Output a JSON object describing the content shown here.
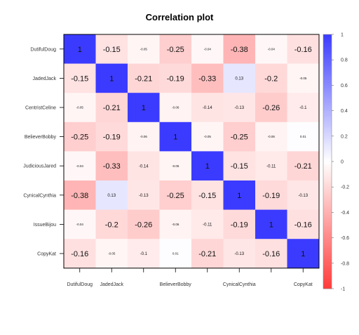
{
  "chart_data": {
    "type": "heatmap",
    "title": "Correlation plot",
    "variables": [
      "DutifulDoug",
      "JadedJack",
      "CentristCeline",
      "BelieverBobby",
      "JudiciousJared",
      "CynicalCynthia",
      "IssueBijou",
      "CopyKat"
    ],
    "x_tick_labels": [
      "DutifulDoug",
      "JadedJack",
      "",
      "BelieverBobby",
      "",
      "CynicalCynthia",
      "",
      "CopyKat"
    ],
    "matrix": [
      [
        1,
        -0.15,
        -0.05,
        -0.25,
        -0.04,
        -0.38,
        -0.04,
        -0.16
      ],
      [
        -0.15,
        1,
        -0.21,
        -0.19,
        -0.33,
        0.13,
        -0.2,
        -0.05
      ],
      [
        -0.05,
        -0.21,
        1,
        -0.06,
        -0.14,
        -0.13,
        -0.26,
        -0.1
      ],
      [
        -0.25,
        -0.19,
        -0.06,
        1,
        -0.05,
        -0.25,
        -0.06,
        0.01
      ],
      [
        -0.04,
        -0.33,
        -0.14,
        -0.05,
        1,
        -0.15,
        -0.11,
        -0.21
      ],
      [
        -0.38,
        0.13,
        -0.13,
        -0.25,
        -0.15,
        1,
        -0.19,
        -0.13
      ],
      [
        -0.04,
        -0.2,
        -0.26,
        -0.06,
        -0.11,
        -0.19,
        1,
        -0.16
      ],
      [
        -0.16,
        -0.05,
        -0.1,
        0.01,
        -0.21,
        -0.13,
        -0.16,
        1
      ]
    ],
    "cell_labels": [
      [
        "1",
        "-0.15",
        "-0.05",
        "-0.25",
        "-0.04",
        "-0.38",
        "-0.04",
        "-0.16"
      ],
      [
        "-0.15",
        "1",
        "-0.21",
        "-0.19",
        "-0.33",
        "0.13",
        "-0.2",
        "-0.05"
      ],
      [
        "-0.05",
        "-0.21",
        "1",
        "-0.06",
        "-0.14",
        "-0.13",
        "-0.26",
        "-0.1"
      ],
      [
        "-0.25",
        "-0.19",
        "-0.06",
        "1",
        "-0.05",
        "-0.25",
        "-0.06",
        "0.01"
      ],
      [
        "-0.04",
        "-0.33",
        "-0.14",
        "-0.05",
        "1",
        "-0.15",
        "-0.11",
        "-0.21"
      ],
      [
        "-0.38",
        "0.13",
        "-0.13",
        "-0.25",
        "-0.15",
        "1",
        "-0.19",
        "-0.13"
      ],
      [
        "-0.04",
        "-0.2",
        "-0.26",
        "-0.06",
        "-0.11",
        "-0.19",
        "1",
        "-0.16"
      ],
      [
        "-0.16",
        "-0.05",
        "-0.1",
        "0.01",
        "-0.21",
        "-0.13",
        "-0.16",
        "1"
      ]
    ],
    "color_range": [
      -1,
      1
    ],
    "colorbar_ticks": [
      1,
      0.8,
      0.6,
      0.4,
      0.2,
      0,
      -0.2,
      -0.4,
      -0.6,
      -0.8,
      -1
    ],
    "colorbar_tick_labels": [
      "1",
      "0.8",
      "0.6",
      "0.4",
      "0.2",
      "0",
      "-0.2",
      "-0.4",
      "-0.6",
      "-0.8",
      "-1"
    ],
    "colors": {
      "positive": "#3b3bff",
      "neutral": "#ffffff",
      "negative": "#ff3b3b"
    },
    "legend_position": "right",
    "grid": false
  }
}
